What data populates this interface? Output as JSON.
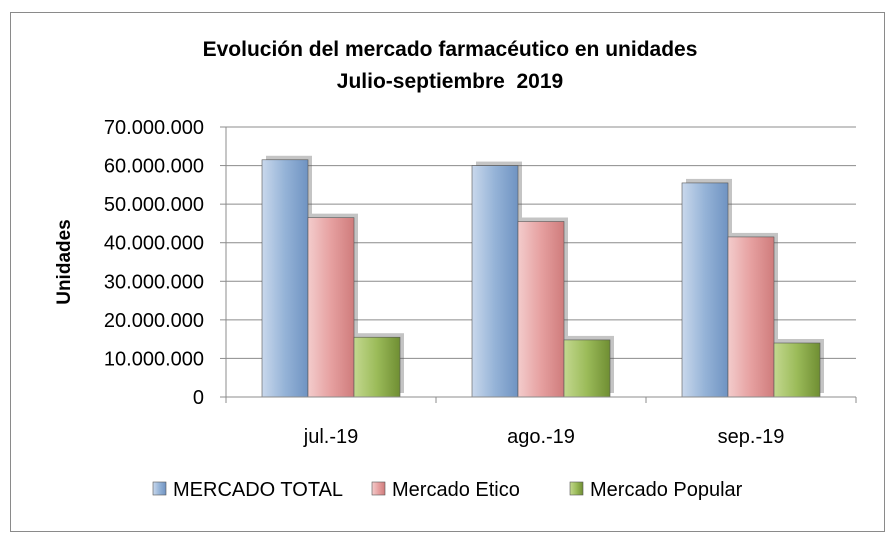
{
  "chart_data": {
    "type": "bar",
    "title": "Evolución del mercado farmacéutico en unidades",
    "subtitle": "Julio-septiembre  2019",
    "ylabel": "Unidades",
    "xlabel": "",
    "ylim": [
      0,
      70000000
    ],
    "yticks": [
      0,
      10000000,
      20000000,
      30000000,
      40000000,
      50000000,
      60000000,
      70000000
    ],
    "ytick_labels": [
      "0",
      "10.000.000",
      "20.000.000",
      "30.000.000",
      "40.000.000",
      "50.000.000",
      "60.000.000",
      "70.000.000"
    ],
    "categories": [
      "jul.-19",
      "ago.-19",
      "sep.-19"
    ],
    "series": [
      {
        "name": "MERCADO TOTAL",
        "values": [
          61500000,
          60000000,
          55500000
        ],
        "color": "#95b3d7"
      },
      {
        "name": "Mercado Etico",
        "values": [
          46500000,
          45500000,
          41500000
        ],
        "color": "#e6a0a0"
      },
      {
        "name": "Mercado Popular",
        "values": [
          15500000,
          14800000,
          14000000
        ],
        "color": "#9bbb59"
      }
    ],
    "grid": true,
    "legend_position": "bottom"
  }
}
